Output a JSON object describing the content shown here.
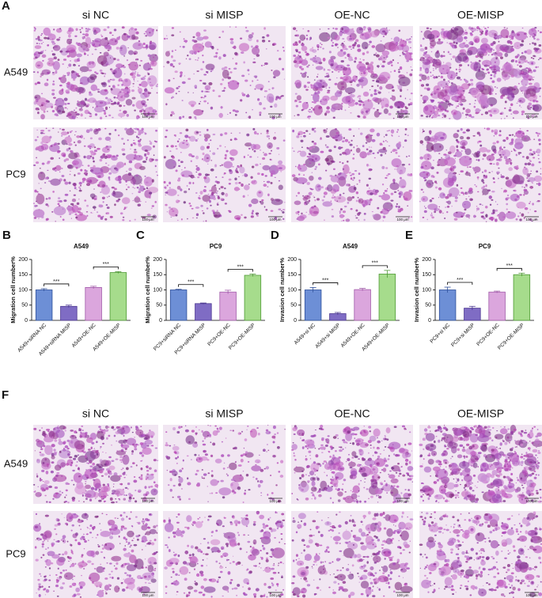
{
  "panel_labels": [
    "A",
    "B",
    "C",
    "D",
    "E",
    "F"
  ],
  "grid_a": {
    "columns": [
      "si NC",
      "si MISP",
      "OE-NC",
      "OE-MISP"
    ],
    "rows": [
      "A549",
      "PC9"
    ],
    "scale_bar": "100 μm"
  },
  "grid_f": {
    "columns": [
      "si NC",
      "si MISP",
      "OE-NC",
      "OE-MISP"
    ],
    "rows": [
      "A549",
      "PC9"
    ],
    "scale_bar": "100 μm"
  },
  "chart_data": [
    {
      "type": "bar",
      "title": "A549",
      "ylabel": "Migration cell number%",
      "categories": [
        "A549+siRNA NC",
        "A549+siRNA MISP",
        "A549+OE-NC",
        "A549+OE-MISP"
      ],
      "values": [
        100,
        46,
        108,
        157
      ],
      "errors": [
        4,
        4,
        4,
        3
      ],
      "colors": [
        "#6d8fd6",
        "#7f6cc4",
        "#dba6dd",
        "#a6dc8c"
      ],
      "edge_colors": [
        "#2f4f9a",
        "#4a3590",
        "#a05aa8",
        "#4f9a35"
      ],
      "ylim": [
        0,
        200
      ],
      "yticks": [
        0,
        50,
        100,
        150,
        200
      ],
      "significance_labels": [
        "***",
        "***"
      ]
    },
    {
      "type": "bar",
      "title": "PC9",
      "ylabel": "Migration cell number%",
      "categories": [
        "PC9+siRNA NC",
        "PC9+siRNA MISP",
        "PC9+OE-NC",
        "PC9+OE-MISP"
      ],
      "values": [
        100,
        55,
        93,
        148
      ],
      "errors": [
        2,
        2,
        6,
        4
      ],
      "colors": [
        "#6d8fd6",
        "#7f6cc4",
        "#dba6dd",
        "#a6dc8c"
      ],
      "edge_colors": [
        "#2f4f9a",
        "#4a3590",
        "#a05aa8",
        "#4f9a35"
      ],
      "ylim": [
        0,
        200
      ],
      "yticks": [
        0,
        50,
        100,
        150,
        200
      ],
      "significance_labels": [
        "***",
        "***"
      ]
    },
    {
      "type": "bar",
      "title": "A549",
      "ylabel": "Invasion cell number%",
      "categories": [
        "A549+si NC",
        "A549+si MISP",
        "A549+OE-NC",
        "A549+OE-MISP"
      ],
      "values": [
        100,
        22,
        101,
        152
      ],
      "errors": [
        8,
        4,
        4,
        12
      ],
      "colors": [
        "#6d8fd6",
        "#7f6cc4",
        "#dba6dd",
        "#a6dc8c"
      ],
      "edge_colors": [
        "#2f4f9a",
        "#4a3590",
        "#a05aa8",
        "#4f9a35"
      ],
      "ylim": [
        0,
        200
      ],
      "yticks": [
        0,
        50,
        100,
        150,
        200
      ],
      "significance_labels": [
        "***",
        "***"
      ]
    },
    {
      "type": "bar",
      "title": "PC9",
      "ylabel": "Invasion cell number%",
      "categories": [
        "PC9+si NC",
        "PC9+si MISP",
        "PC9+OE-NC",
        "PC9+OE-MISP"
      ],
      "values": [
        100,
        40,
        93,
        150
      ],
      "errors": [
        9,
        6,
        3,
        5
      ],
      "colors": [
        "#6d8fd6",
        "#7f6cc4",
        "#dba6dd",
        "#a6dc8c"
      ],
      "edge_colors": [
        "#2f4f9a",
        "#4a3590",
        "#a05aa8",
        "#4f9a35"
      ],
      "ylim": [
        0,
        200
      ],
      "yticks": [
        0,
        50,
        100,
        150,
        200
      ],
      "significance_labels": [
        "***",
        "***"
      ]
    }
  ]
}
